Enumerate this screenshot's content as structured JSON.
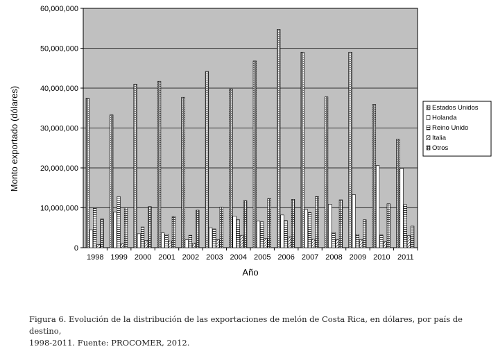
{
  "chart_data": {
    "type": "bar",
    "title": "",
    "xlabel": "Año",
    "ylabel": "Monto exportado (dólares)",
    "ylim": [
      0,
      60000000
    ],
    "yticks": [
      "0",
      "10,000,000",
      "20,000,000",
      "30,000,000",
      "40,000,000",
      "50,000,000",
      "60,000,000"
    ],
    "categories": [
      "1998",
      "1999",
      "2000",
      "2001",
      "2002",
      "2003",
      "2004",
      "2005",
      "2006",
      "2007",
      "2008",
      "2009",
      "2010",
      "2011"
    ],
    "series": [
      {
        "name": "Estados Unidos",
        "values": [
          37500000,
          33300000,
          41000000,
          41700000,
          37700000,
          44200000,
          39800000,
          46800000,
          54700000,
          49000000,
          37800000,
          49000000,
          35900000,
          27200000
        ]
      },
      {
        "name": "Holanda",
        "values": [
          4500000,
          8900000,
          3500000,
          3700000,
          2000000,
          5000000,
          7900000,
          6700000,
          8200000,
          9600000,
          10900000,
          13300000,
          20600000,
          19900000
        ]
      },
      {
        "name": "Reino Unido",
        "values": [
          10000000,
          12800000,
          5200000,
          3400000,
          3100000,
          4700000,
          7000000,
          6500000,
          6800000,
          8800000,
          3800000,
          3400000,
          3200000,
          10800000
        ]
      },
      {
        "name": "Italia",
        "values": [
          800000,
          1000000,
          1800000,
          1700000,
          1100000,
          2000000,
          3100000,
          2300000,
          2700000,
          2100000,
          2000000,
          2000000,
          1500000,
          3000000
        ]
      },
      {
        "name": "Otros",
        "values": [
          7200000,
          10000000,
          10300000,
          7800000,
          9400000,
          10200000,
          11800000,
          12300000,
          12100000,
          12800000,
          12000000,
          7000000,
          11000000,
          5400000
        ]
      }
    ],
    "grid": true,
    "legend": "right"
  },
  "caption": {
    "line1": "Figura 6. Evolución de la distribución de las exportaciones de melón de Costa Rica, en dólares, por país de destino,",
    "line2": "1998-2011. Fuente: PROCOMER, 2012."
  }
}
